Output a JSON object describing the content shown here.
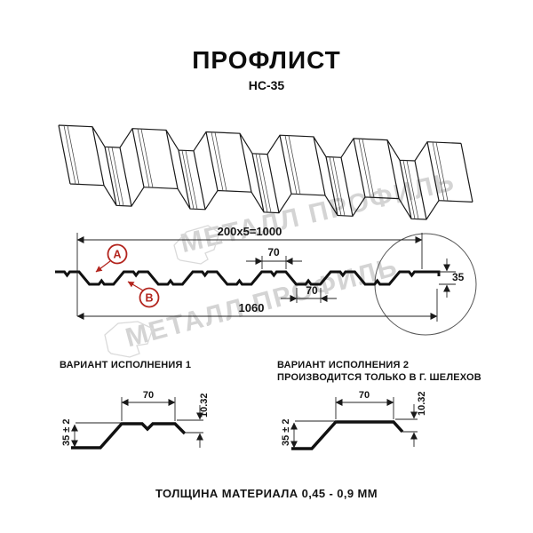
{
  "header": {
    "title": "ПРОФЛИСТ",
    "subtitle": "НС-35"
  },
  "cross_section": {
    "dim_total_modules": "200x5=1000",
    "dim_top_flange": "70",
    "dim_bottom_flange": "70",
    "dim_overall_width": "1060",
    "dim_height": "35",
    "label_a": "А",
    "label_b": "В"
  },
  "variant1": {
    "heading": "ВАРИАНТ ИСПОЛНЕНИЯ 1",
    "dim_width": "70",
    "dim_lip": "10.32",
    "dim_height": "35 ± 2"
  },
  "variant2": {
    "heading": "ВАРИАНТ ИСПОЛНЕНИЯ 2",
    "subheading": "ПРОИЗВОДИТСЯ ТОЛЬКО В Г. ШЕЛЕХОВ",
    "dim_width": "70",
    "dim_lip": "10.32",
    "dim_height": "35 ± 2"
  },
  "footer": {
    "thickness_note": "ТОЛЩИНА МАТЕРИАЛА 0,45 - 0,9 ММ"
  },
  "watermark": {
    "text": "МЕТАЛЛ ПРОФИЛЬ"
  },
  "colors": {
    "accent_red": "#b3251e",
    "line": "#1a1a1a",
    "watermark_gray": "#d4d4d4"
  }
}
